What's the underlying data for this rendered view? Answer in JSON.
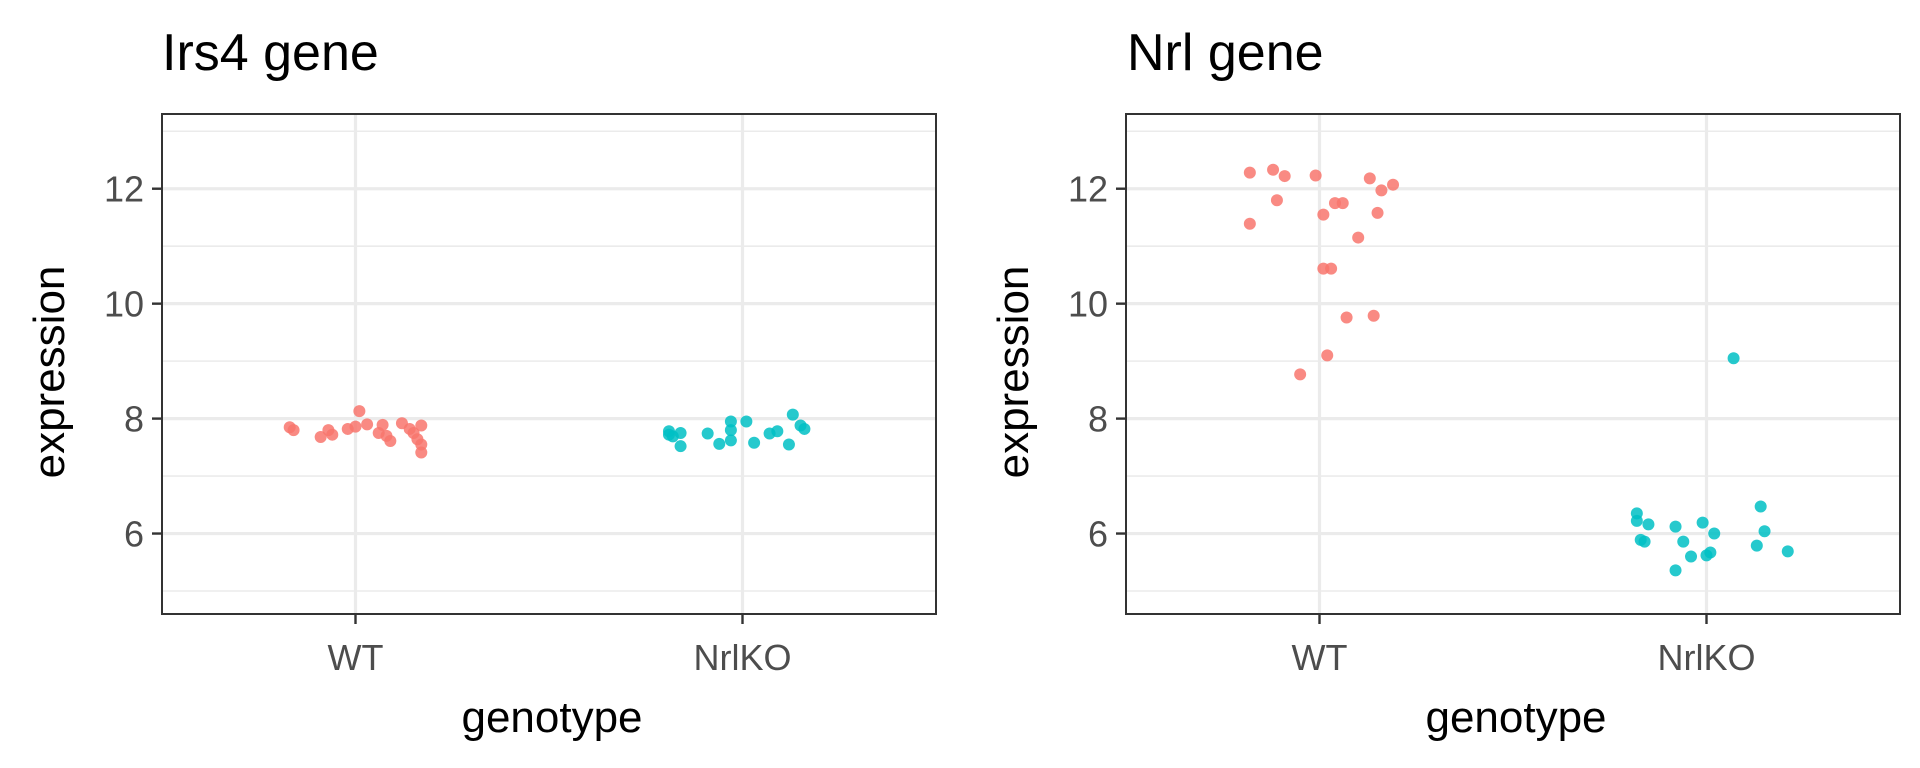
{
  "figure": {
    "background": "#ffffff",
    "grid_color": "#ebebeb",
    "panel_border_color": "#333333",
    "wt_color": "#F8766D",
    "ko_color": "#00BFC4"
  },
  "chart_data": [
    {
      "type": "scatter",
      "title": "Irs4 gene",
      "xlabel": "genotype",
      "ylabel": "expression",
      "categories": [
        "WT",
        "NrlKO"
      ],
      "yticks": [
        6,
        8,
        10,
        12
      ],
      "ylim": [
        4.6,
        13.3
      ],
      "grid": true,
      "series": [
        {
          "category": "WT",
          "points": [
            {
              "x": -0.17,
              "y": 7.85
            },
            {
              "x": -0.16,
              "y": 7.8
            },
            {
              "x": -0.09,
              "y": 7.68
            },
            {
              "x": -0.07,
              "y": 7.8
            },
            {
              "x": -0.06,
              "y": 7.72
            },
            {
              "x": -0.02,
              "y": 7.82
            },
            {
              "x": 0.0,
              "y": 7.86
            },
            {
              "x": 0.01,
              "y": 8.13
            },
            {
              "x": 0.03,
              "y": 7.9
            },
            {
              "x": 0.06,
              "y": 7.75
            },
            {
              "x": 0.07,
              "y": 7.89
            },
            {
              "x": 0.08,
              "y": 7.7
            },
            {
              "x": 0.09,
              "y": 7.61
            },
            {
              "x": 0.12,
              "y": 7.92
            },
            {
              "x": 0.14,
              "y": 7.82
            },
            {
              "x": 0.15,
              "y": 7.75
            },
            {
              "x": 0.16,
              "y": 7.64
            },
            {
              "x": 0.17,
              "y": 7.88
            },
            {
              "x": 0.17,
              "y": 7.55
            },
            {
              "x": 0.17,
              "y": 7.41
            }
          ]
        },
        {
          "category": "NrlKO",
          "points": [
            {
              "x": -0.19,
              "y": 7.78
            },
            {
              "x": -0.19,
              "y": 7.72
            },
            {
              "x": -0.18,
              "y": 7.69
            },
            {
              "x": -0.16,
              "y": 7.52
            },
            {
              "x": -0.16,
              "y": 7.75
            },
            {
              "x": -0.09,
              "y": 7.74
            },
            {
              "x": -0.06,
              "y": 7.56
            },
            {
              "x": -0.03,
              "y": 7.62
            },
            {
              "x": -0.03,
              "y": 7.8
            },
            {
              "x": -0.03,
              "y": 7.95
            },
            {
              "x": 0.01,
              "y": 7.95
            },
            {
              "x": 0.03,
              "y": 7.58
            },
            {
              "x": 0.07,
              "y": 7.74
            },
            {
              "x": 0.09,
              "y": 7.78
            },
            {
              "x": 0.12,
              "y": 7.55
            },
            {
              "x": 0.13,
              "y": 8.07
            },
            {
              "x": 0.15,
              "y": 7.88
            },
            {
              "x": 0.16,
              "y": 7.82
            }
          ]
        }
      ]
    },
    {
      "type": "scatter",
      "title": "Nrl gene",
      "xlabel": "genotype",
      "ylabel": "expression",
      "categories": [
        "WT",
        "NrlKO"
      ],
      "yticks": [
        6,
        8,
        10,
        12
      ],
      "ylim": [
        4.6,
        13.3
      ],
      "grid": true,
      "series": [
        {
          "category": "WT",
          "points": [
            {
              "x": -0.18,
              "y": 12.28
            },
            {
              "x": -0.18,
              "y": 11.39
            },
            {
              "x": -0.12,
              "y": 12.33
            },
            {
              "x": -0.11,
              "y": 11.8
            },
            {
              "x": -0.09,
              "y": 12.22
            },
            {
              "x": -0.05,
              "y": 8.77
            },
            {
              "x": -0.01,
              "y": 12.23
            },
            {
              "x": 0.01,
              "y": 11.55
            },
            {
              "x": 0.01,
              "y": 10.61
            },
            {
              "x": 0.03,
              "y": 10.61
            },
            {
              "x": 0.02,
              "y": 9.1
            },
            {
              "x": 0.04,
              "y": 11.75
            },
            {
              "x": 0.06,
              "y": 11.75
            },
            {
              "x": 0.07,
              "y": 9.76
            },
            {
              "x": 0.1,
              "y": 11.15
            },
            {
              "x": 0.13,
              "y": 12.18
            },
            {
              "x": 0.14,
              "y": 9.79
            },
            {
              "x": 0.15,
              "y": 11.58
            },
            {
              "x": 0.16,
              "y": 11.97
            },
            {
              "x": 0.19,
              "y": 12.07
            }
          ]
        },
        {
          "category": "NrlKO",
          "points": [
            {
              "x": -0.18,
              "y": 6.35
            },
            {
              "x": -0.18,
              "y": 6.22
            },
            {
              "x": -0.17,
              "y": 5.89
            },
            {
              "x": -0.16,
              "y": 5.86
            },
            {
              "x": -0.15,
              "y": 6.16
            },
            {
              "x": -0.08,
              "y": 6.12
            },
            {
              "x": -0.08,
              "y": 5.36
            },
            {
              "x": -0.06,
              "y": 5.86
            },
            {
              "x": -0.04,
              "y": 5.6
            },
            {
              "x": -0.01,
              "y": 6.19
            },
            {
              "x": 0.0,
              "y": 5.62
            },
            {
              "x": 0.01,
              "y": 5.67
            },
            {
              "x": 0.02,
              "y": 6.0
            },
            {
              "x": 0.07,
              "y": 9.05
            },
            {
              "x": 0.13,
              "y": 5.79
            },
            {
              "x": 0.14,
              "y": 6.47
            },
            {
              "x": 0.15,
              "y": 6.04
            },
            {
              "x": 0.21,
              "y": 5.69
            }
          ]
        }
      ]
    }
  ]
}
